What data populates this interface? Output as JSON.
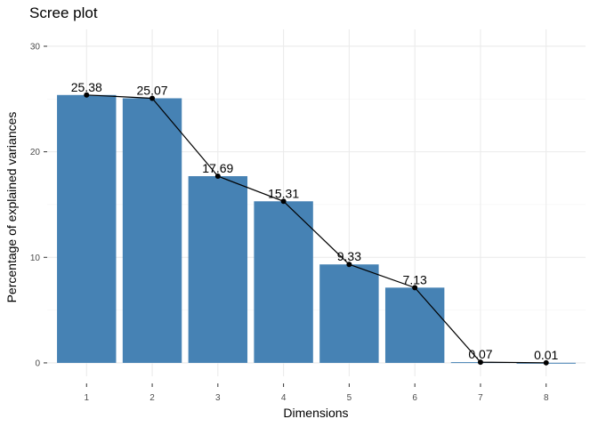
{
  "chart_data": {
    "type": "bar",
    "title": "Scree plot",
    "xlabel": "Dimensions",
    "ylabel": "Percentage of explained variances",
    "categories": [
      "1",
      "2",
      "3",
      "4",
      "5",
      "6",
      "7",
      "8"
    ],
    "values": [
      25.38,
      25.07,
      17.69,
      15.31,
      9.33,
      7.13,
      0.07,
      0.01
    ],
    "data_labels": [
      "25.38",
      "25.07",
      "17.69",
      "15.31",
      "9.33",
      "7.13",
      "0.07",
      "0.01"
    ],
    "ylim": [
      0,
      30
    ],
    "yticks": [
      0,
      10,
      20,
      30
    ],
    "overlay": "line-with-points",
    "grid": true,
    "legend": "none",
    "colors": {
      "bar": "#4682b4",
      "line": "#000000",
      "background": "#ffffff"
    }
  }
}
